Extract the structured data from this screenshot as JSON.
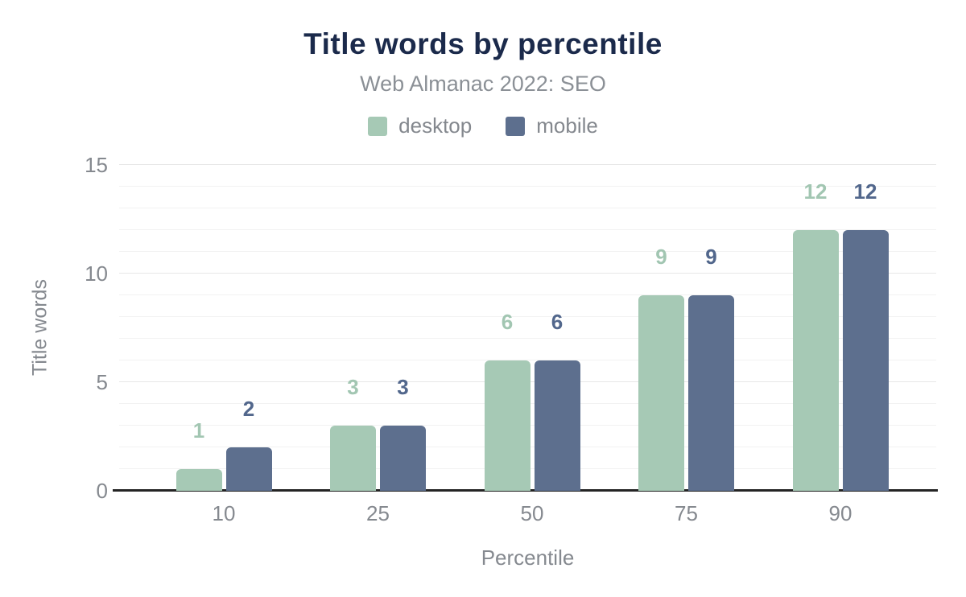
{
  "title": "Title words by percentile",
  "subtitle": "Web Almanac 2022: SEO",
  "chart_data": {
    "type": "bar",
    "title": "Title words by percentile",
    "subtitle": "Web Almanac 2022: SEO",
    "categories": [
      "10",
      "25",
      "50",
      "75",
      "90"
    ],
    "series": [
      {
        "name": "desktop",
        "color": "#a6c9b5",
        "label_color": "#a2c6b2",
        "values": [
          1,
          3,
          6,
          9,
          12
        ]
      },
      {
        "name": "mobile",
        "color": "#5d6f8e",
        "label_color": "#52678c",
        "values": [
          2,
          3,
          6,
          9,
          12
        ]
      }
    ],
    "xlabel": "Percentile",
    "ylabel": "Title words",
    "ylim": [
      0,
      15
    ],
    "yticks": [
      0,
      5,
      10,
      15
    ],
    "minor_grid_step": 1,
    "major_grid_step": 5,
    "grid": "horizontal",
    "legend_position": "top",
    "data_labels": true
  },
  "colors": {
    "title": "#1b2a4b",
    "subtitle_text": "#8b9096",
    "axis_text": "#85898f",
    "axis_line": "#242424",
    "gridline_minor": "#f2f2f2",
    "gridline_major": "#e7e7e7",
    "background": "#ffffff"
  }
}
